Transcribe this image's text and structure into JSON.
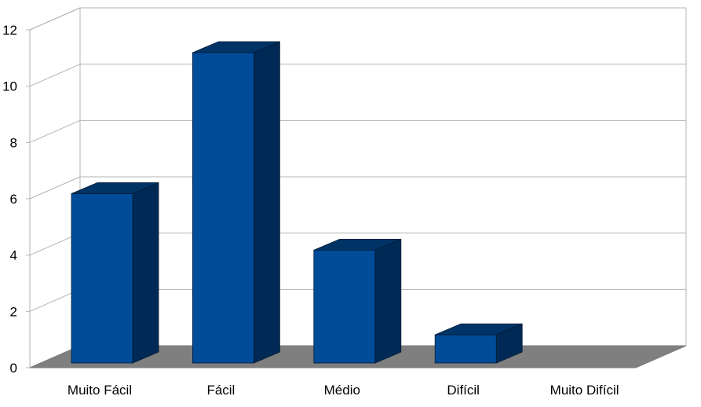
{
  "chart_data": {
    "type": "bar",
    "categories": [
      "Muito Fácil",
      "Fácil",
      "Médio",
      "Difícil",
      "Muito Difícil"
    ],
    "values": [
      6,
      11,
      4,
      1,
      0
    ],
    "ylim": [
      0,
      12
    ],
    "yticks": [
      0,
      2,
      4,
      6,
      8,
      10,
      12
    ],
    "title": "",
    "xlabel": "",
    "ylabel": "",
    "grid": true,
    "style": "3d",
    "colors": {
      "bar_front": "#004C99",
      "bar_side": "#002A55",
      "bar_top": "#003366",
      "floor": "#7F7F7F",
      "grid": "#B3B3B3"
    }
  }
}
